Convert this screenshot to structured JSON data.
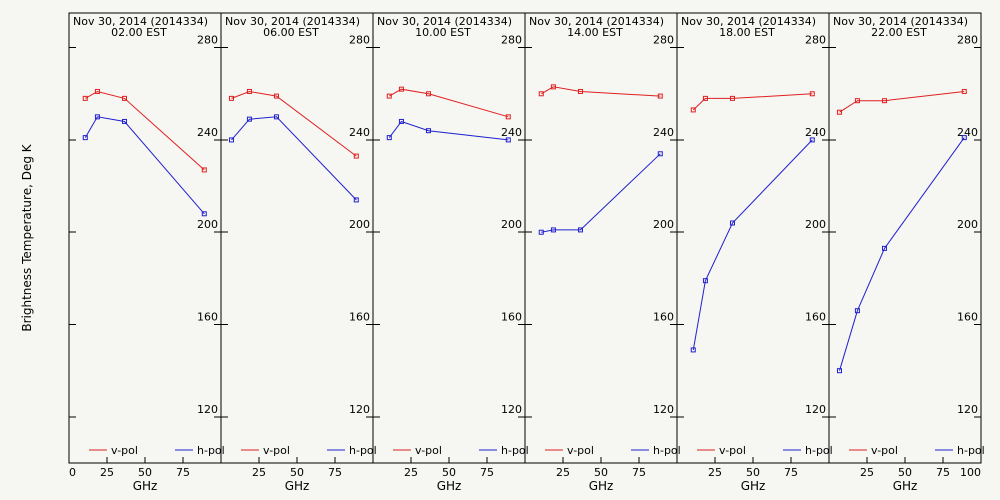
{
  "ylabel": "Brightness Temperature, Deg K",
  "chart_data": [
    {
      "type": "line",
      "title": "Nov 30, 2014 (2014334)",
      "subtitle": "02.00 EST",
      "xlabel": "GHz",
      "ylabel": "Brightness Temperature, Deg K",
      "xlim": [
        0,
        100
      ],
      "ylim": [
        100,
        295
      ],
      "xticks": [
        0,
        25,
        50,
        75
      ],
      "yticks": [
        120,
        160,
        200,
        240,
        280
      ],
      "grid": false,
      "legend": "bottom",
      "series": [
        {
          "name": "v-pol",
          "color": "#e02020",
          "x": [
            10.7,
            18.7,
            36.5,
            89.0
          ],
          "y": [
            258,
            261,
            258,
            227
          ]
        },
        {
          "name": "h-pol",
          "color": "#2020d0",
          "x": [
            10.7,
            18.7,
            36.5,
            89.0
          ],
          "y": [
            241,
            250,
            248,
            208
          ]
        }
      ]
    },
    {
      "type": "line",
      "title": "Nov 30, 2014 (2014334)",
      "subtitle": "06.00 EST",
      "xlabel": "GHz",
      "ylabel": "",
      "xlim": [
        0,
        100
      ],
      "ylim": [
        100,
        295
      ],
      "xticks": [
        25,
        50,
        75
      ],
      "yticks": [
        120,
        160,
        200,
        240,
        280
      ],
      "grid": false,
      "legend": "bottom",
      "series": [
        {
          "name": "v-pol",
          "color": "#e02020",
          "x": [
            6.9,
            18.7,
            36.5,
            89.0
          ],
          "y": [
            258,
            261,
            259,
            233
          ]
        },
        {
          "name": "h-pol",
          "color": "#2020d0",
          "x": [
            6.9,
            18.7,
            36.5,
            89.0
          ],
          "y": [
            240,
            249,
            250,
            214
          ]
        }
      ]
    },
    {
      "type": "line",
      "title": "Nov 30, 2014 (2014334)",
      "subtitle": "10.00 EST",
      "xlabel": "GHz",
      "ylabel": "",
      "xlim": [
        0,
        100
      ],
      "ylim": [
        100,
        295
      ],
      "xticks": [
        25,
        50,
        75
      ],
      "yticks": [
        120,
        160,
        200,
        240,
        280
      ],
      "grid": false,
      "legend": "bottom",
      "series": [
        {
          "name": "v-pol",
          "color": "#e02020",
          "x": [
            10.7,
            18.7,
            36.5,
            89.0
          ],
          "y": [
            259,
            262,
            260,
            250
          ]
        },
        {
          "name": "h-pol",
          "color": "#2020d0",
          "x": [
            10.7,
            18.7,
            36.5,
            89.0
          ],
          "y": [
            241,
            248,
            244,
            240
          ]
        }
      ]
    },
    {
      "type": "line",
      "title": "Nov 30, 2014 (2014334)",
      "subtitle": "14.00 EST",
      "xlabel": "GHz",
      "ylabel": "",
      "xlim": [
        0,
        100
      ],
      "ylim": [
        100,
        295
      ],
      "xticks": [
        25,
        50,
        75
      ],
      "yticks": [
        120,
        160,
        200,
        240,
        280
      ],
      "grid": false,
      "legend": "bottom",
      "series": [
        {
          "name": "v-pol",
          "color": "#e02020",
          "x": [
            10.7,
            18.7,
            36.5,
            89.0
          ],
          "y": [
            260,
            263,
            261,
            259
          ]
        },
        {
          "name": "h-pol",
          "color": "#2020d0",
          "x": [
            10.7,
            18.7,
            36.5,
            89.0
          ],
          "y": [
            200,
            201,
            201,
            234
          ]
        }
      ]
    },
    {
      "type": "line",
      "title": "Nov 30, 2014 (2014334)",
      "subtitle": "18.00 EST",
      "xlabel": "GHz",
      "ylabel": "",
      "xlim": [
        0,
        100
      ],
      "ylim": [
        100,
        295
      ],
      "xticks": [
        25,
        50,
        75
      ],
      "yticks": [
        120,
        160,
        200,
        240,
        280
      ],
      "grid": false,
      "legend": "bottom",
      "series": [
        {
          "name": "v-pol",
          "color": "#e02020",
          "x": [
            10.7,
            18.7,
            36.5,
            89.0
          ],
          "y": [
            253,
            258,
            258,
            260
          ]
        },
        {
          "name": "h-pol",
          "color": "#2020d0",
          "x": [
            10.7,
            18.7,
            36.5,
            89.0
          ],
          "y": [
            149,
            179,
            204,
            240
          ]
        }
      ]
    },
    {
      "type": "line",
      "title": "Nov 30, 2014 (2014334)",
      "subtitle": "22.00 EST",
      "xlabel": "GHz",
      "ylabel": "",
      "xlim": [
        0,
        100
      ],
      "ylim": [
        100,
        295
      ],
      "xticks": [
        25,
        50,
        75,
        100
      ],
      "yticks": [
        120,
        160,
        200,
        240,
        280
      ],
      "grid": false,
      "legend": "bottom",
      "series": [
        {
          "name": "v-pol",
          "color": "#e02020",
          "x": [
            6.9,
            18.7,
            36.5,
            89.0
          ],
          "y": [
            252,
            257,
            257,
            261
          ]
        },
        {
          "name": "h-pol",
          "color": "#2020d0",
          "x": [
            6.9,
            18.7,
            36.5,
            89.0
          ],
          "y": [
            140,
            166,
            193,
            241
          ]
        }
      ]
    }
  ]
}
